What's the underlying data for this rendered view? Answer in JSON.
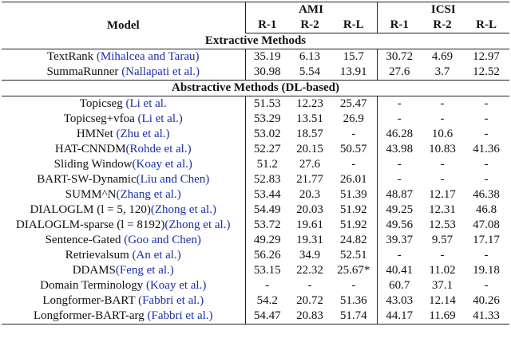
{
  "table": {
    "header": {
      "model": "Model",
      "groups": [
        "AMI",
        "ICSI"
      ],
      "metrics": [
        "R-1",
        "R-2",
        "R-L",
        "R-1",
        "R-2",
        "R-L"
      ]
    },
    "sections": [
      {
        "title": "Extractive Methods",
        "rows": [
          [
            "TextRank ",
            "(Mihalcea and Tarau)",
            "35.19",
            "6.13",
            "15.7",
            "30.72",
            "4.69",
            "12.97"
          ],
          [
            "SummaRunner ",
            "(Nallapati et al.)",
            "30.98",
            "5.54",
            "13.91",
            "27.6",
            "3.7",
            "12.52"
          ]
        ]
      },
      {
        "title": "Abstractive Methods (DL-based)",
        "rows": [
          [
            "Topicseg ",
            "(Li et al.",
            "51.53",
            "12.23",
            "25.47",
            "-",
            "-",
            "-"
          ],
          [
            "Topicseg+vfoa ",
            "(Li et al.)",
            "53.29",
            "13.51",
            "26.9",
            "-",
            "-",
            "-"
          ],
          [
            "HMNet ",
            "(Zhu et al.)",
            "53.02",
            "18.57",
            "-",
            "46.28",
            "10.6",
            "-"
          ],
          [
            "HAT-CNNDM",
            "(Rohde et al.)",
            "52.27",
            "20.15",
            "50.57",
            "43.98",
            "10.83",
            "41.36"
          ],
          [
            "Sliding Window",
            "(Koay et al.)",
            "51.2",
            "27.6",
            "-",
            "-",
            "-",
            "-"
          ],
          [
            "BART-SW-Dynamic",
            "(Liu and Chen)",
            "52.83",
            "21.77",
            "26.01",
            "-",
            "-",
            "-"
          ],
          [
            "SUMM^N",
            "(Zhang et al.)",
            "53.44",
            "20.3",
            "51.39",
            "48.87",
            "12.17",
            "46.38"
          ],
          [
            "DIALOGLM (l = 5, 120)",
            "(Zhong et al.)",
            "54.49",
            "20.03",
            "51.92",
            "49.25",
            "12.31",
            "46.8"
          ],
          [
            "DIALOGLM-sparse (l = 8192)",
            "(Zhong et al.)",
            "53.72",
            "19.61",
            "51.92",
            "49.56",
            "12.53",
            "47.08"
          ],
          [
            "Sentence-Gated ",
            "(Goo and Chen)",
            "49.29",
            "19.31",
            "24.82",
            "39.37",
            "9.57",
            "17.17"
          ],
          [
            "Retrievalsum ",
            "(An et al.)",
            "56.26",
            "34.9",
            "52.51",
            "-",
            "-",
            "-"
          ],
          [
            "DDAMS",
            "(Feng et al.)",
            "53.15",
            "22.32",
            "25.67*",
            "40.41",
            "11.02",
            "19.18"
          ],
          [
            "Domain Terminology ",
            "(Koay et al.)",
            "-",
            "-",
            "-",
            "60.7",
            "37.1",
            "-"
          ],
          [
            "Longformer-BART ",
            "(Fabbri et al.)",
            "54.2",
            "20.72",
            "51.36",
            "43.03",
            "12.14",
            "40.26"
          ],
          [
            "Longformer-BART-arg ",
            "(Fabbri et al.)",
            "54.47",
            "20.83",
            "51.74",
            "44.17",
            "11.69",
            "41.33"
          ]
        ]
      }
    ]
  }
}
